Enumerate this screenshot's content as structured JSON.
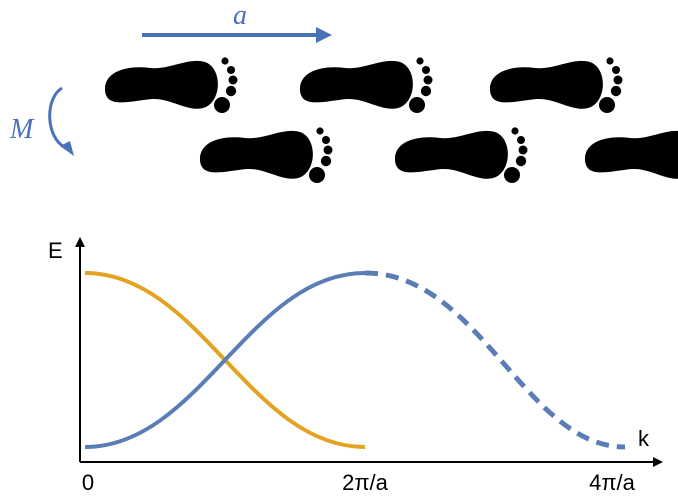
{
  "header": {
    "translation_label": "a",
    "rotation_label": "M"
  },
  "plot": {
    "y_label": "E",
    "x_label": "k",
    "x_ticks": [
      "0",
      "2π/a",
      "4π/a"
    ]
  }
}
